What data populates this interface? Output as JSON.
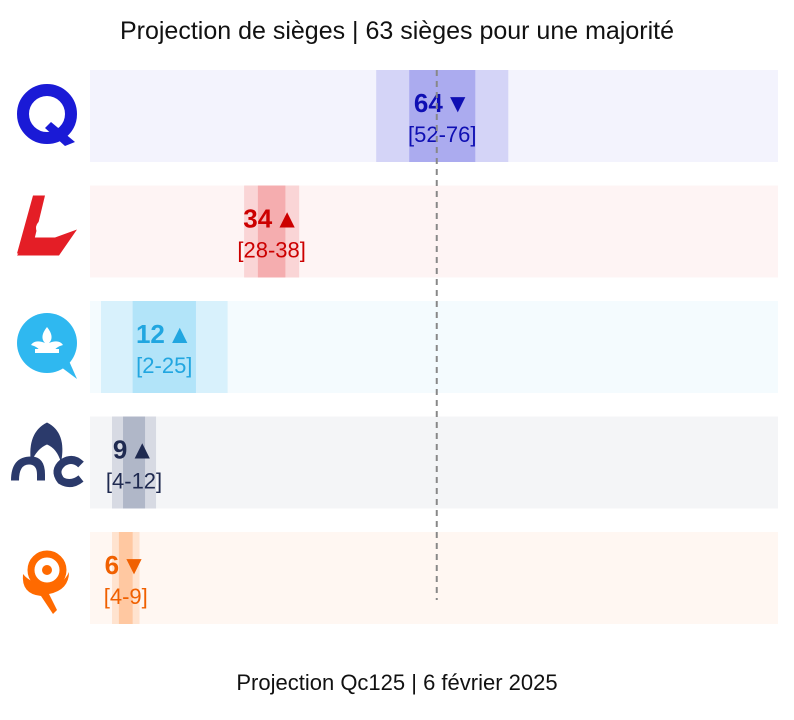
{
  "chart_data": {
    "type": "bar",
    "title": "Projection de sièges | 63 sièges pour une majorité",
    "footer": "Projection Qc125 | 6 février 2025",
    "majority_line": 63,
    "xlim": [
      0,
      125
    ],
    "series": [
      {
        "party_icon": "caq-logo-icon",
        "seats": 64,
        "trend": "▼",
        "range": [
          52,
          76
        ],
        "color": "#1a1ad6",
        "dark_color": "#0f0fb3",
        "label": "64",
        "range_label": "[52-76]"
      },
      {
        "party_icon": "plq-logo-icon",
        "seats": 34,
        "trend": "▲",
        "range": [
          28,
          38
        ],
        "color": "#e41e26",
        "dark_color": "#cc0000",
        "label": "34",
        "range_label": "[28-38]"
      },
      {
        "party_icon": "pq-logo-icon",
        "seats": 12,
        "trend": "▲",
        "range": [
          2,
          25
        ],
        "color": "#2fb8f0",
        "dark_color": "#21a6e0",
        "label": "12",
        "range_label": "[2-25]"
      },
      {
        "party_icon": "pcq-logo-icon",
        "seats": 9,
        "trend": "▲",
        "range": [
          4,
          12
        ],
        "color": "#2b3a6b",
        "dark_color": "#1f2a50",
        "label": "9",
        "range_label": "[4-12]"
      },
      {
        "party_icon": "qs-logo-icon",
        "seats": 6,
        "trend": "▼",
        "range": [
          4,
          9
        ],
        "color": "#ff6a00",
        "dark_color": "#f06000",
        "label": "6",
        "range_label": "[4-9]"
      }
    ]
  }
}
